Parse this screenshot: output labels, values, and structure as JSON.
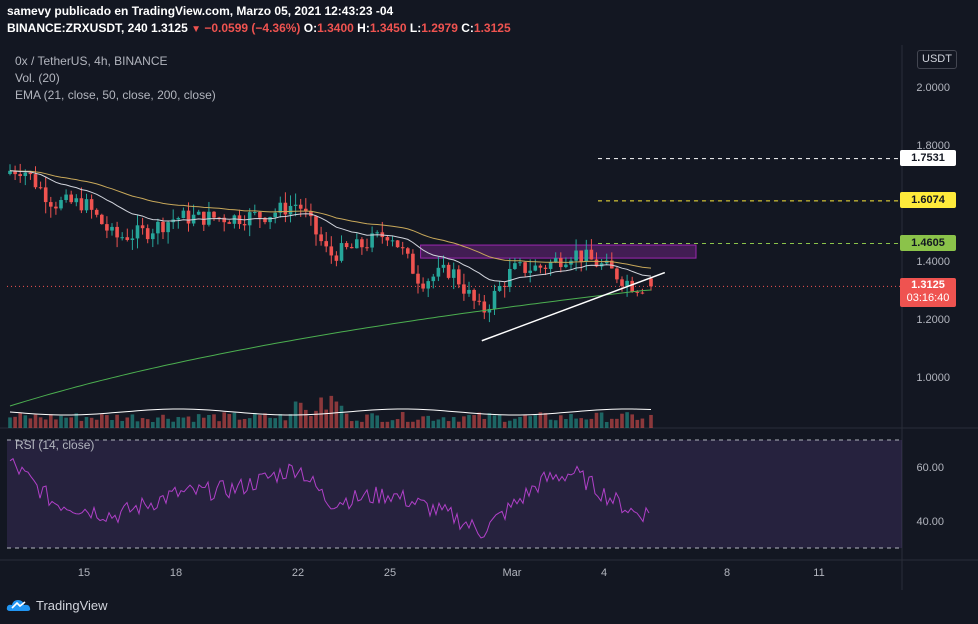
{
  "header": {
    "line1": "samevy publicado en TradingView.com, Marzo 05, 2021 12:43:23 -04",
    "symbol": "BINANCE:ZRXUSDT, 240",
    "last": "1.3125",
    "change": "−0.0599 (−4.36%)",
    "o_label": "O:",
    "o_value": "1.3400",
    "h_label": "H:",
    "h_value": "1.3450",
    "l_label": "L:",
    "l_value": "1.2979",
    "c_label": "C:",
    "c_value": "1.3125"
  },
  "legend": {
    "title": "0x / TetherUS, 4h, BINANCE",
    "volume": "Vol. (20)",
    "ema": "EMA (21, close, 50, close, 200, close)",
    "rsi": "RSI (14, close)"
  },
  "currency_badge": "USDT",
  "price_labels": {
    "level_1": "1.7531",
    "level_2": "1.6074",
    "level_3": "1.4605",
    "current": "1.3125",
    "countdown": "03:16:40"
  },
  "colors": {
    "background": "#131722",
    "up": "#26a69a",
    "down": "#ef5350",
    "ema21": "#d1d4dc",
    "ema50": "#c8a85a",
    "ema200": "#4caf50",
    "rsi": "#b040c8",
    "rsi_band": "#7e57c2",
    "zone": "#9c27b0",
    "level_1": "#ffffff",
    "level_2": "#ffeb3b",
    "level_3": "#8bc34a"
  },
  "brand": "TradingView",
  "chart_data": [
    {
      "type": "candlestick",
      "title": "0x / TetherUS, 4h, BINANCE",
      "x_ticks": [
        "15",
        "18",
        "22",
        "25",
        "Mar",
        "4",
        "8",
        "11"
      ],
      "y_ticks": [
        1.0,
        1.2,
        1.4,
        1.6,
        1.8,
        2.0
      ],
      "ylim": [
        0.88,
        2.05
      ],
      "ohlc_anchors": [
        {
          "x": "Feb 12",
          "close": 1.7
        },
        {
          "x": "Feb 13",
          "close": 1.72
        },
        {
          "x": "Feb 14",
          "close": 1.6
        },
        {
          "x": "Feb 15",
          "close": 1.6
        },
        {
          "x": "Feb 16",
          "close": 1.48
        },
        {
          "x": "Feb 17",
          "close": 1.5
        },
        {
          "x": "Feb 18",
          "close": 1.55
        },
        {
          "x": "Feb 19",
          "close": 1.55
        },
        {
          "x": "Feb 20",
          "close": 1.55
        },
        {
          "x": "Feb 21",
          "close": 1.56
        },
        {
          "x": "Feb 22",
          "close": 1.6
        },
        {
          "x": "Feb 23",
          "close": 1.42
        },
        {
          "x": "Feb 24",
          "close": 1.45
        },
        {
          "x": "Feb 25",
          "close": 1.5
        },
        {
          "x": "Feb 26",
          "close": 1.33
        },
        {
          "x": "Feb 27",
          "close": 1.37
        },
        {
          "x": "Feb 28",
          "close": 1.22
        },
        {
          "x": "Mar 1",
          "close": 1.37
        },
        {
          "x": "Mar 2",
          "close": 1.38
        },
        {
          "x": "Mar 3",
          "close": 1.43
        },
        {
          "x": "Mar 4",
          "close": 1.38
        },
        {
          "x": "Mar 5",
          "close": 1.3125
        }
      ],
      "horizontal_levels": [
        1.7531,
        1.6074,
        1.4605
      ],
      "current_price": 1.3125,
      "resistance_zone": {
        "from": "Feb 26",
        "to": "Mar 7",
        "low": 1.41,
        "high": 1.455
      },
      "trendline": {
        "from": [
          "Feb 28",
          1.125
        ],
        "to": [
          "Mar 5",
          1.33
        ]
      },
      "series": [
        {
          "name": "EMA 21",
          "color": "#d1d4dc"
        },
        {
          "name": "EMA 50",
          "color": "#c8a85a"
        },
        {
          "name": "EMA 200",
          "color": "#4caf50"
        },
        {
          "name": "Vol. (20)",
          "color": "#26a69a"
        }
      ]
    },
    {
      "type": "line",
      "title": "RSI (14, close)",
      "y_ticks": [
        40.0,
        60.0
      ],
      "ylim": [
        27,
        75
      ],
      "bands": [
        70,
        30
      ],
      "anchors": [
        {
          "x": "Feb 12",
          "y": 68
        },
        {
          "x": "Feb 14",
          "y": 47
        },
        {
          "x": "Feb 16",
          "y": 42
        },
        {
          "x": "Feb 18",
          "y": 50
        },
        {
          "x": "Feb 20",
          "y": 52
        },
        {
          "x": "Feb 22",
          "y": 60
        },
        {
          "x": "Feb 23",
          "y": 47
        },
        {
          "x": "Feb 25",
          "y": 50
        },
        {
          "x": "Feb 27",
          "y": 42
        },
        {
          "x": "Feb 28",
          "y": 36
        },
        {
          "x": "Mar 2",
          "y": 55
        },
        {
          "x": "Mar 3",
          "y": 58
        },
        {
          "x": "Mar 4",
          "y": 50
        },
        {
          "x": "Mar 5",
          "y": 43
        }
      ]
    }
  ]
}
